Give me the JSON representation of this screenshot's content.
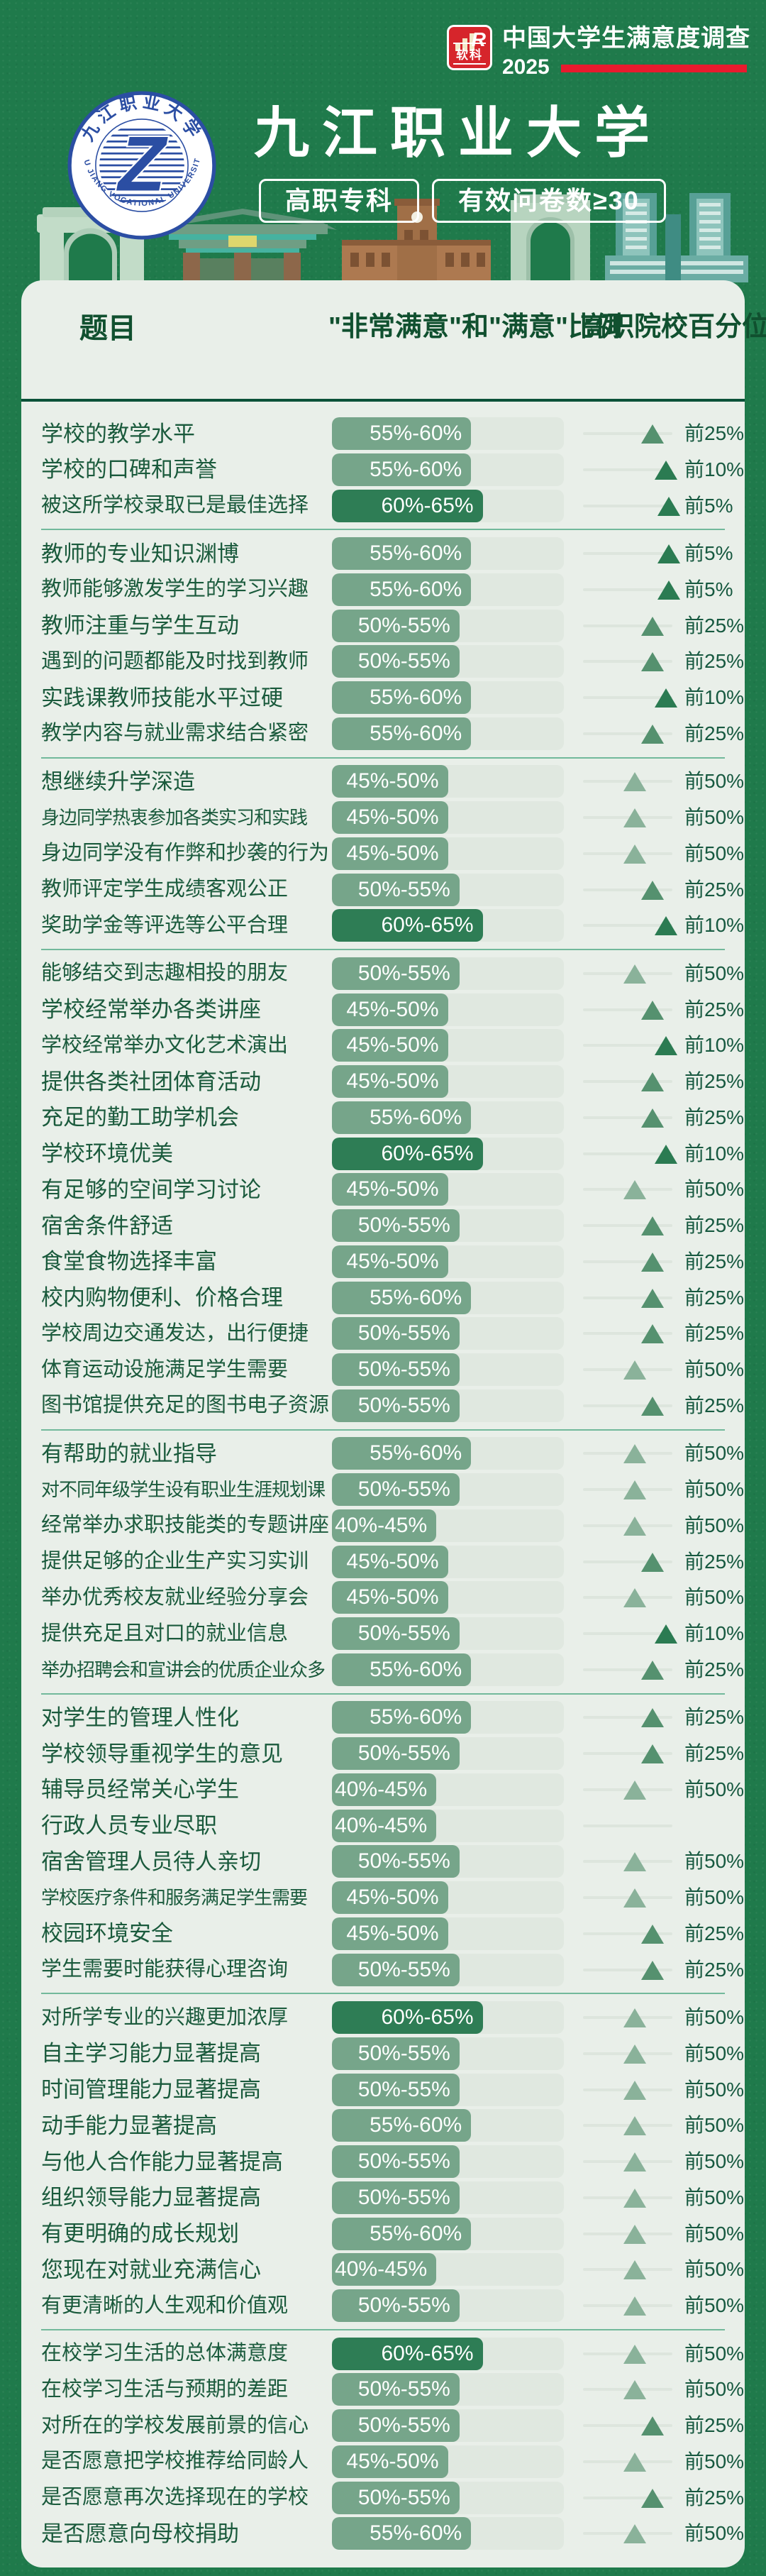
{
  "brand": {
    "logo_text": "软科",
    "logo_r": "R",
    "survey_title": "中国大学生满意度调查",
    "year": "2025",
    "red": "#e81b2e",
    "logo_red": "#d6252b"
  },
  "university": {
    "name": "九江职业大学",
    "badge_level": "高职专科",
    "badge_sample": "有效问卷数≥30",
    "seal_text_top": "九江职业大学",
    "seal_text_bottom": "JIU JIANG VOCATIONAL UNIVERSITY",
    "seal_center_glyph": "Z",
    "seal_blue": "#2b4ea3"
  },
  "table": {
    "headers": {
      "question": "题目",
      "ratio": "\"非常满意\"和\"满意\"比例",
      "percentile": "高职院校百分位"
    }
  },
  "colors": {
    "page_bg": "#1f7a4b",
    "card_bg": "#e9efe9",
    "question_ink": "#1a5a3c",
    "header_ink": "#10502f",
    "bar_track": "#e0e8e0",
    "bar_fill": "#76a58a",
    "bar_fill_highlight": "#2e7d55",
    "triangle_top10": "#2b7b52",
    "triangle_top25": "#55916f",
    "triangle_top50": "#8ab29a",
    "header_rule": "#0b5239",
    "group_separator": "#72b99b"
  },
  "chart_data": {
    "type": "bar",
    "title": "九江职业大学 中国大学生满意度调查 2025",
    "columns": [
      "题目",
      "\"非常满意\"和\"满意\"比例",
      "高职院校百分位"
    ],
    "ratio_axis": {
      "min": 0,
      "max": 100,
      "unit": "%"
    },
    "percentile_levels": [
      "前5%",
      "前10%",
      "前25%",
      "前50%"
    ],
    "groups": [
      {
        "rows": [
          {
            "q": "学校的教学水平",
            "ratio": "55%-60%",
            "upper": 60,
            "hl": false,
            "pct": "前25%"
          },
          {
            "q": "学校的口碑和声誉",
            "ratio": "55%-60%",
            "upper": 60,
            "hl": false,
            "pct": "前10%"
          },
          {
            "q": "被这所学校录取已是最佳选择",
            "ratio": "60%-65%",
            "upper": 65,
            "hl": true,
            "pct": "前5%"
          }
        ]
      },
      {
        "rows": [
          {
            "q": "教师的专业知识渊博",
            "ratio": "55%-60%",
            "upper": 60,
            "hl": false,
            "pct": "前5%"
          },
          {
            "q": "教师能够激发学生的学习兴趣",
            "ratio": "55%-60%",
            "upper": 60,
            "hl": false,
            "pct": "前5%"
          },
          {
            "q": "教师注重与学生互动",
            "ratio": "50%-55%",
            "upper": 55,
            "hl": false,
            "pct": "前25%"
          },
          {
            "q": "遇到的问题都能及时找到教师",
            "ratio": "50%-55%",
            "upper": 55,
            "hl": false,
            "pct": "前25%"
          },
          {
            "q": "实践课教师技能水平过硬",
            "ratio": "55%-60%",
            "upper": 60,
            "hl": false,
            "pct": "前10%"
          },
          {
            "q": "教学内容与就业需求结合紧密",
            "ratio": "55%-60%",
            "upper": 60,
            "hl": false,
            "pct": "前25%"
          }
        ]
      },
      {
        "rows": [
          {
            "q": "想继续升学深造",
            "ratio": "45%-50%",
            "upper": 50,
            "hl": false,
            "pct": "前50%"
          },
          {
            "q": "身边同学热衷参加各类实习和实践",
            "ratio": "45%-50%",
            "upper": 50,
            "hl": false,
            "pct": "前50%"
          },
          {
            "q": "身边同学没有作弊和抄袭的行为",
            "ratio": "45%-50%",
            "upper": 50,
            "hl": false,
            "pct": "前50%"
          },
          {
            "q": "教师评定学生成绩客观公正",
            "ratio": "50%-55%",
            "upper": 55,
            "hl": false,
            "pct": "前25%"
          },
          {
            "q": "奖助学金等评选等公平合理",
            "ratio": "60%-65%",
            "upper": 65,
            "hl": true,
            "pct": "前10%"
          }
        ]
      },
      {
        "rows": [
          {
            "q": "能够结交到志趣相投的朋友",
            "ratio": "50%-55%",
            "upper": 55,
            "hl": false,
            "pct": "前50%"
          },
          {
            "q": "学校经常举办各类讲座",
            "ratio": "45%-50%",
            "upper": 50,
            "hl": false,
            "pct": "前25%"
          },
          {
            "q": "学校经常举办文化艺术演出",
            "ratio": "45%-50%",
            "upper": 50,
            "hl": false,
            "pct": "前10%"
          },
          {
            "q": "提供各类社团体育活动",
            "ratio": "45%-50%",
            "upper": 50,
            "hl": false,
            "pct": "前25%"
          },
          {
            "q": "充足的勤工助学机会",
            "ratio": "55%-60%",
            "upper": 60,
            "hl": false,
            "pct": "前25%"
          },
          {
            "q": "学校环境优美",
            "ratio": "60%-65%",
            "upper": 65,
            "hl": true,
            "pct": "前10%"
          },
          {
            "q": "有足够的空间学习讨论",
            "ratio": "45%-50%",
            "upper": 50,
            "hl": false,
            "pct": "前50%"
          },
          {
            "q": "宿舍条件舒适",
            "ratio": "50%-55%",
            "upper": 55,
            "hl": false,
            "pct": "前25%"
          },
          {
            "q": "食堂食物选择丰富",
            "ratio": "45%-50%",
            "upper": 50,
            "hl": false,
            "pct": "前25%"
          },
          {
            "q": "校内购物便利、价格合理",
            "ratio": "55%-60%",
            "upper": 60,
            "hl": false,
            "pct": "前25%"
          },
          {
            "q": "学校周边交通发达，出行便捷",
            "ratio": "50%-55%",
            "upper": 55,
            "hl": false,
            "pct": "前25%"
          },
          {
            "q": "体育运动设施满足学生需要",
            "ratio": "50%-55%",
            "upper": 55,
            "hl": false,
            "pct": "前50%"
          },
          {
            "q": "图书馆提供充足的图书电子资源",
            "ratio": "50%-55%",
            "upper": 55,
            "hl": false,
            "pct": "前25%"
          }
        ]
      },
      {
        "rows": [
          {
            "q": "有帮助的就业指导",
            "ratio": "55%-60%",
            "upper": 60,
            "hl": false,
            "pct": "前50%"
          },
          {
            "q": "对不同年级学生设有职业生涯规划课",
            "ratio": "50%-55%",
            "upper": 55,
            "hl": false,
            "pct": "前50%"
          },
          {
            "q": "经常举办求职技能类的专题讲座",
            "ratio": "40%-45%",
            "upper": 45,
            "hl": false,
            "pct": "前50%"
          },
          {
            "q": "提供足够的企业生产实习实训",
            "ratio": "45%-50%",
            "upper": 50,
            "hl": false,
            "pct": "前25%"
          },
          {
            "q": "举办优秀校友就业经验分享会",
            "ratio": "45%-50%",
            "upper": 50,
            "hl": false,
            "pct": "前50%"
          },
          {
            "q": "提供充足且对口的就业信息",
            "ratio": "50%-55%",
            "upper": 55,
            "hl": false,
            "pct": "前10%"
          },
          {
            "q": "举办招聘会和宣讲会的优质企业众多",
            "ratio": "55%-60%",
            "upper": 60,
            "hl": false,
            "pct": "前25%"
          }
        ]
      },
      {
        "rows": [
          {
            "q": "对学生的管理人性化",
            "ratio": "55%-60%",
            "upper": 60,
            "hl": false,
            "pct": "前25%"
          },
          {
            "q": "学校领导重视学生的意见",
            "ratio": "50%-55%",
            "upper": 55,
            "hl": false,
            "pct": "前25%"
          },
          {
            "q": "辅导员经常关心学生",
            "ratio": "40%-45%",
            "upper": 45,
            "hl": false,
            "pct": "前50%"
          },
          {
            "q": "行政人员专业尽职",
            "ratio": "40%-45%",
            "upper": 45,
            "hl": false,
            "pct": null
          },
          {
            "q": "宿舍管理人员待人亲切",
            "ratio": "50%-55%",
            "upper": 55,
            "hl": false,
            "pct": "前50%"
          },
          {
            "q": "学校医疗条件和服务满足学生需要",
            "ratio": "45%-50%",
            "upper": 50,
            "hl": false,
            "pct": "前50%"
          },
          {
            "q": "校园环境安全",
            "ratio": "45%-50%",
            "upper": 50,
            "hl": false,
            "pct": "前25%"
          },
          {
            "q": "学生需要时能获得心理咨询",
            "ratio": "50%-55%",
            "upper": 55,
            "hl": false,
            "pct": "前25%"
          }
        ]
      },
      {
        "rows": [
          {
            "q": "对所学专业的兴趣更加浓厚",
            "ratio": "60%-65%",
            "upper": 65,
            "hl": true,
            "pct": "前50%"
          },
          {
            "q": "自主学习能力显著提高",
            "ratio": "50%-55%",
            "upper": 55,
            "hl": false,
            "pct": "前50%"
          },
          {
            "q": "时间管理能力显著提高",
            "ratio": "50%-55%",
            "upper": 55,
            "hl": false,
            "pct": "前50%"
          },
          {
            "q": "动手能力显著提高",
            "ratio": "55%-60%",
            "upper": 60,
            "hl": false,
            "pct": "前50%"
          },
          {
            "q": "与他人合作能力显著提高",
            "ratio": "50%-55%",
            "upper": 55,
            "hl": false,
            "pct": "前50%"
          },
          {
            "q": "组织领导能力显著提高",
            "ratio": "50%-55%",
            "upper": 55,
            "hl": false,
            "pct": "前50%"
          },
          {
            "q": "有更明确的成长规划",
            "ratio": "55%-60%",
            "upper": 60,
            "hl": false,
            "pct": "前50%"
          },
          {
            "q": "您现在对就业充满信心",
            "ratio": "40%-45%",
            "upper": 45,
            "hl": false,
            "pct": "前50%"
          },
          {
            "q": "有更清晰的人生观和价值观",
            "ratio": "50%-55%",
            "upper": 55,
            "hl": false,
            "pct": "前50%"
          }
        ]
      },
      {
        "rows": [
          {
            "q": "在校学习生活的总体满意度",
            "ratio": "60%-65%",
            "upper": 65,
            "hl": true,
            "pct": "前50%"
          },
          {
            "q": "在校学习生活与预期的差距",
            "ratio": "50%-55%",
            "upper": 55,
            "hl": false,
            "pct": "前50%"
          },
          {
            "q": "对所在的学校发展前景的信心",
            "ratio": "50%-55%",
            "upper": 55,
            "hl": false,
            "pct": "前25%"
          },
          {
            "q": "是否愿意把学校推荐给同龄人",
            "ratio": "45%-50%",
            "upper": 50,
            "hl": false,
            "pct": "前50%"
          },
          {
            "q": "是否愿意再次选择现在的学校",
            "ratio": "50%-55%",
            "upper": 55,
            "hl": false,
            "pct": "前25%"
          },
          {
            "q": "是否愿意向母校捐助",
            "ratio": "55%-60%",
            "upper": 60,
            "hl": false,
            "pct": "前50%"
          }
        ]
      }
    ]
  }
}
